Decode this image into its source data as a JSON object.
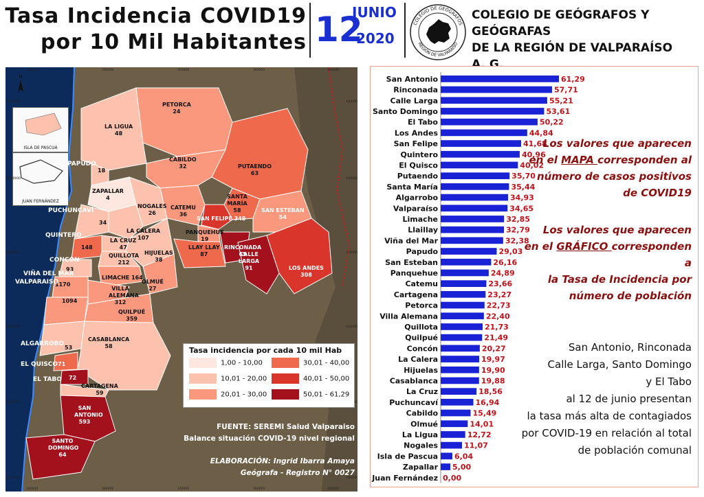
{
  "header": {
    "title_line1": "Tasa Incidencia COVID19",
    "title_line2": "por 10 Mil Habitantes",
    "day": "12",
    "month": "JUNIO",
    "year": "2020",
    "org_line1": "COLEGIO DE GEÓGRAFOS Y GEÓGRAFAS",
    "org_line2": "DE LA REGIÓN DE VALPARAÍSO",
    "org_line3": "A. G.",
    "seal_top": "COLEGIO DE GEÓGRAFOS",
    "seal_bottom": "REGIÓN DE VALPARAÍSO"
  },
  "map": {
    "north": "N",
    "inset_pascua": "ISLA DE PASCUA",
    "inset_juan": "JUAN FERNÁNDEZ",
    "coords_x": [
      "240000",
      "280000",
      "320000",
      "360000",
      "400000"
    ],
    "coords_y": [
      "6440000",
      "6400000",
      "6360000",
      "6320000",
      "6280000",
      "6240000"
    ],
    "communes": [
      {
        "name": "PETORCA",
        "value": "24"
      },
      {
        "name": "LA LIGUA",
        "value": "48"
      },
      {
        "name": "PAPUDO",
        "value": ""
      },
      {
        "name": "",
        "value": "18"
      },
      {
        "name": "CABILDO",
        "value": "32"
      },
      {
        "name": "PUTAENDO",
        "value": "63"
      },
      {
        "name": "ZAPALLAR",
        "value": "4"
      },
      {
        "name": "NOGALES",
        "value": "26"
      },
      {
        "name": "CATEMU",
        "value": "36"
      },
      {
        "name": "SANTA MARÍA",
        "value": "58"
      },
      {
        "name": "SAN ESTEBAN",
        "value": "54"
      },
      {
        "name": "PUCHUNCAVÍ",
        "value": ""
      },
      {
        "name": "",
        "value": "34"
      },
      {
        "name": "LA CALERA",
        "value": "107"
      },
      {
        "name": "SAN FELIPE",
        "value": "348"
      },
      {
        "name": "QUINTERO",
        "value": ""
      },
      {
        "name": "",
        "value": "148"
      },
      {
        "name": "LA CRUZ",
        "value": "47"
      },
      {
        "name": "PANQUEHUE",
        "value": "19"
      },
      {
        "name": "QUILLOTA",
        "value": "212"
      },
      {
        "name": "HIJUELAS",
        "value": "38"
      },
      {
        "name": "LLAY LLAY",
        "value": "87"
      },
      {
        "name": "RINCONADA",
        "value": "65"
      },
      {
        "name": "CALLE LARGA",
        "value": "91"
      },
      {
        "name": "CONCÓN",
        "value": ""
      },
      {
        "name": "",
        "value": "93"
      },
      {
        "name": "LOS ANDES",
        "value": "308"
      },
      {
        "name": "VIÑA DEL MAR",
        "value": ""
      },
      {
        "name": "",
        "value": "1170"
      },
      {
        "name": "VALPARAISO",
        "value": ""
      },
      {
        "name": "LIMACHE",
        "value": "164"
      },
      {
        "name": "OLMUÉ",
        "value": "27"
      },
      {
        "name": "VILLA ALEMANA",
        "value": "312"
      },
      {
        "name": "",
        "value": "1094"
      },
      {
        "name": "QUILPUÉ",
        "value": "359"
      },
      {
        "name": "ALGARROBO",
        "value": ""
      },
      {
        "name": "",
        "value": "53"
      },
      {
        "name": "CASABLANCA",
        "value": "58"
      },
      {
        "name": "EL QUISCO",
        "value": ""
      },
      {
        "name": "",
        "value": "71"
      },
      {
        "name": "EL TABO",
        "value": ""
      },
      {
        "name": "",
        "value": "72"
      },
      {
        "name": "CARTAGENA",
        "value": "59"
      },
      {
        "name": "SAN ANTONIO",
        "value": "593"
      },
      {
        "name": "SANTO DOMINGO",
        "value": "64"
      }
    ],
    "legend": {
      "title": "Tasa incidencia por cada 10 mil Hab",
      "items": [
        {
          "label": "1,00 - 10,00",
          "color": "#fde7de"
        },
        {
          "label": "10,01 - 20,00",
          "color": "#fcc2ad"
        },
        {
          "label": "20,01 - 30,00",
          "color": "#f9987c"
        },
        {
          "label": "30,01 - 40,00",
          "color": "#ef6a4c"
        },
        {
          "label": "40,01 - 50,00",
          "color": "#d9352a"
        },
        {
          "label": "50,01 - 61,29",
          "color": "#a3111d"
        }
      ]
    },
    "source_line1": "FUENTE: SEREMI Salud Valparaiso",
    "source_line2": "Balance situación COVID-19 nivel regional",
    "credit_line1": "ELABORACIÓN: Ingrid Ibarra Amaya",
    "credit_line2": "Geógrafa - Registro N° 0027"
  },
  "notes": {
    "mapa_1": "Los valores que aparecen",
    "mapa_2a": "en el ",
    "mapa_2b": "MAPA ",
    "mapa_2c": "corresponden al",
    "mapa_3": "número de casos positivos",
    "mapa_4": "de COVID19",
    "graf_1": "Los valores que aparecen",
    "graf_2a": "en el ",
    "graf_2b": "GRÁFICO ",
    "graf_2c": "corresponden a",
    "graf_3": "la Tasa de Incidencia por",
    "graf_4": "número de población",
    "sum_1": "San Antonio, Rinconada",
    "sum_2": "Calle Larga, Santo Domingo",
    "sum_3": "y El Tabo",
    "sum_4": "al 12 de junio presentan",
    "sum_5": "la tasa más alta de contagiados",
    "sum_6": "por COVID-19 en relación al total",
    "sum_7": "de población comunal"
  },
  "chart_data": {
    "type": "bar",
    "orientation": "horizontal",
    "bar_color": "#1a22d6",
    "label_color": "#c0121a",
    "xlim": [
      0,
      65
    ],
    "categories": [
      "San Antonio",
      "Rinconada",
      "Calle Larga",
      "Santo Domingo",
      "El Tabo",
      "Los Andes",
      "San Felipe",
      "Quintero",
      "El Quisco",
      "Putaendo",
      "Santa María",
      "Algarrobo",
      "Valparaíso",
      "Limache",
      "Llaillay",
      "Viña del Mar",
      "Papudo",
      "San Esteban",
      "Panquehue",
      "Catemu",
      "Cartagena",
      "Petorca",
      "Villa Alemana",
      "Quillota",
      "Quilpué",
      "Concón",
      "La Calera",
      "Hijuelas",
      "Casablanca",
      "La Cruz",
      "Puchuncaví",
      "Cabildo",
      "Olmué",
      "La Ligua",
      "Nogales",
      "Isla de Pascua",
      "Zapallar",
      "Juan Fernández"
    ],
    "values": [
      61.29,
      57.71,
      55.21,
      53.61,
      50.22,
      44.84,
      41.68,
      40.96,
      40.02,
      35.7,
      35.44,
      34.93,
      34.65,
      32.85,
      32.79,
      32.38,
      29.03,
      26.16,
      24.89,
      23.66,
      23.27,
      22.73,
      22.4,
      21.73,
      21.49,
      20.27,
      19.97,
      19.9,
      19.88,
      18.56,
      16.94,
      15.49,
      14.01,
      12.72,
      11.07,
      6.04,
      5.0,
      0.0
    ],
    "value_labels": [
      "61,29",
      "57,71",
      "55,21",
      "53,61",
      "50,22",
      "44,84",
      "41,68",
      "40,96",
      "40,02",
      "35,70",
      "35,44",
      "34,93",
      "34,65",
      "32,85",
      "32,79",
      "32,38",
      "29,03",
      "26,16",
      "24,89",
      "23,66",
      "23,27",
      "22,73",
      "22,40",
      "21,73",
      "21,49",
      "20,27",
      "19,97",
      "19,90",
      "19,88",
      "18,56",
      "16,94",
      "15,49",
      "14,01",
      "12,72",
      "11,07",
      "6,04",
      "5,00",
      "0,00"
    ]
  }
}
